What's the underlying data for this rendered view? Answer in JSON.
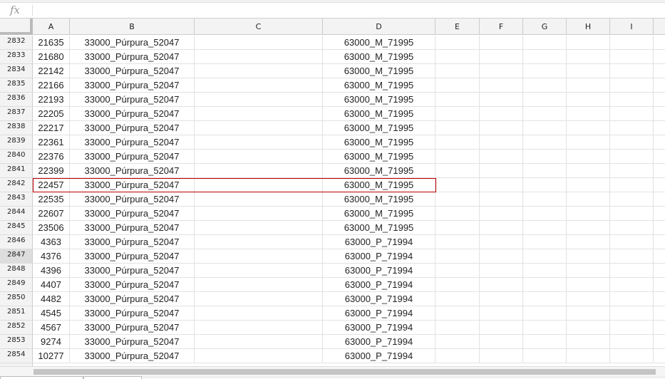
{
  "formula_bar": {
    "fx_label": "fx",
    "value": ""
  },
  "columns": [
    "A",
    "B",
    "C",
    "D",
    "E",
    "F",
    "G",
    "H",
    "I"
  ],
  "selected_row": "2842",
  "rows": [
    {
      "n": "2832",
      "a": "21635",
      "b": "33000_Púrpura_52047",
      "d": "63000_M_71995"
    },
    {
      "n": "2833",
      "a": "21680",
      "b": "33000_Púrpura_52047",
      "d": "63000_M_71995"
    },
    {
      "n": "2834",
      "a": "22142",
      "b": "33000_Púrpura_52047",
      "d": "63000_M_71995"
    },
    {
      "n": "2835",
      "a": "22166",
      "b": "33000_Púrpura_52047",
      "d": "63000_M_71995"
    },
    {
      "n": "2836",
      "a": "22193",
      "b": "33000_Púrpura_52047",
      "d": "63000_M_71995"
    },
    {
      "n": "2837",
      "a": "22205",
      "b": "33000_Púrpura_52047",
      "d": "63000_M_71995"
    },
    {
      "n": "2838",
      "a": "22217",
      "b": "33000_Púrpura_52047",
      "d": "63000_M_71995"
    },
    {
      "n": "2839",
      "a": "22361",
      "b": "33000_Púrpura_52047",
      "d": "63000_M_71995"
    },
    {
      "n": "2840",
      "a": "22376",
      "b": "33000_Púrpura_52047",
      "d": "63000_M_71995"
    },
    {
      "n": "2841",
      "a": "22399",
      "b": "33000_Púrpura_52047",
      "d": "63000_M_71995"
    },
    {
      "n": "2842",
      "a": "22457",
      "b": "33000_Púrpura_52047",
      "d": "63000_M_71995"
    },
    {
      "n": "2843",
      "a": "22535",
      "b": "33000_Púrpura_52047",
      "d": "63000_M_71995"
    },
    {
      "n": "2844",
      "a": "22607",
      "b": "33000_Púrpura_52047",
      "d": "63000_M_71995"
    },
    {
      "n": "2845",
      "a": "23506",
      "b": "33000_Púrpura_52047",
      "d": "63000_M_71995"
    },
    {
      "n": "2846",
      "a": "4363",
      "b": "33000_Púrpura_52047",
      "d": "63000_P_71994"
    },
    {
      "n": "2847",
      "a": "4376",
      "b": "33000_Púrpura_52047",
      "d": "63000_P_71994"
    },
    {
      "n": "2848",
      "a": "4396",
      "b": "33000_Púrpura_52047",
      "d": "63000_P_71994"
    },
    {
      "n": "2849",
      "a": "4407",
      "b": "33000_Púrpura_52047",
      "d": "63000_P_71994"
    },
    {
      "n": "2850",
      "a": "4482",
      "b": "33000_Púrpura_52047",
      "d": "63000_P_71994"
    },
    {
      "n": "2851",
      "a": "4545",
      "b": "33000_Púrpura_52047",
      "d": "63000_P_71994"
    },
    {
      "n": "2852",
      "a": "4567",
      "b": "33000_Púrpura_52047",
      "d": "63000_P_71994"
    },
    {
      "n": "2853",
      "a": "9274",
      "b": "33000_Púrpura_52047",
      "d": "63000_P_71994"
    },
    {
      "n": "2854",
      "a": "10277",
      "b": "33000_Púrpura_52047",
      "d": "63000_P_71994"
    }
  ]
}
